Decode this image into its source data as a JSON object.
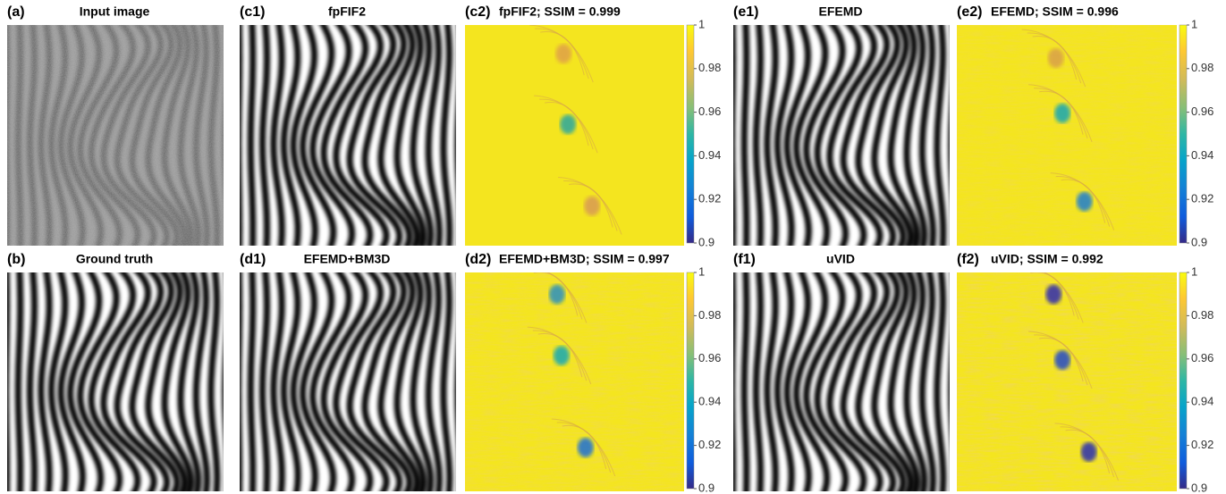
{
  "panels": [
    {
      "label": "(a)",
      "title": "Input image"
    },
    {
      "label": "(c1)",
      "title": "fpFIF2"
    },
    {
      "label": "(c2)",
      "title": "fpFIF2; SSIM = 0.999"
    },
    {
      "label": "(e1)",
      "title": "EFEMD"
    },
    {
      "label": "(e2)",
      "title": "EFEMD; SSIM = 0.996"
    },
    {
      "label": "(b)",
      "title": "Ground truth"
    },
    {
      "label": "(d1)",
      "title": "EFEMD+BM3D"
    },
    {
      "label": "(d2)",
      "title": "EFEMD+BM3D; SSIM = 0.997"
    },
    {
      "label": "(f1)",
      "title": "uVID"
    },
    {
      "label": "(f2)",
      "title": "uVID; SSIM = 0.992"
    }
  ],
  "colorbar": {
    "lim": [
      0.9,
      1
    ],
    "ticks": [
      1,
      0.98,
      0.96,
      0.94,
      0.92,
      0.9
    ]
  }
}
